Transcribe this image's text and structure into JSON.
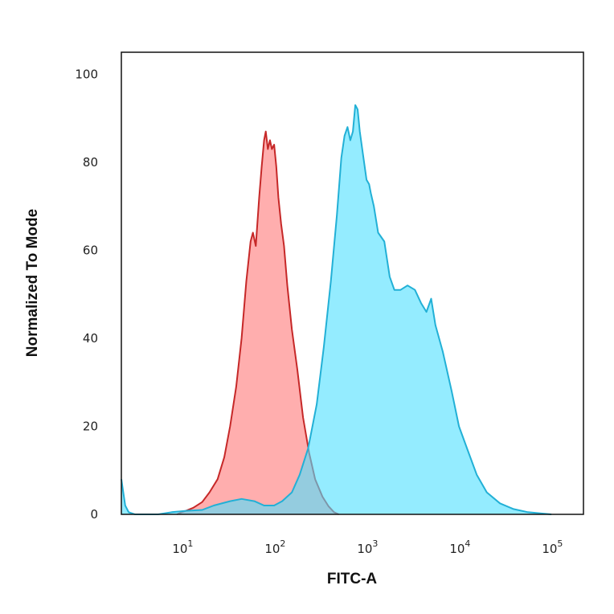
{
  "chart_data": {
    "type": "area",
    "title": "",
    "xlabel": "FITC-A",
    "ylabel": "Normalized To Mode",
    "x_scale": "log",
    "xlim": [
      2,
      200000
    ],
    "ylim": [
      0,
      105
    ],
    "x_ticks": [
      {
        "value": 10,
        "base": "10",
        "exp": "1"
      },
      {
        "value": 100,
        "base": "10",
        "exp": "2"
      },
      {
        "value": 1000,
        "base": "10",
        "exp": "3"
      },
      {
        "value": 10000,
        "base": "10",
        "exp": "4"
      },
      {
        "value": 100000,
        "base": "10",
        "exp": "5"
      }
    ],
    "y_ticks": [
      {
        "value": 0,
        "label": "0"
      },
      {
        "value": 20,
        "label": "20"
      },
      {
        "value": 40,
        "label": "40"
      },
      {
        "value": 60,
        "label": "60"
      },
      {
        "value": 80,
        "label": "80"
      },
      {
        "value": 100,
        "label": "100"
      }
    ],
    "grid": false,
    "legend": "none",
    "series": [
      {
        "fill": "#ff6b6b",
        "stroke": "#c62828",
        "fill_opacity": 0.55,
        "points": [
          [
            8,
            0
          ],
          [
            9,
            0.5
          ],
          [
            10,
            0.8
          ],
          [
            12,
            1.5
          ],
          [
            15,
            2.8
          ],
          [
            18,
            5
          ],
          [
            22,
            8
          ],
          [
            26,
            13
          ],
          [
            30,
            20
          ],
          [
            35,
            29
          ],
          [
            40,
            40
          ],
          [
            45,
            53
          ],
          [
            50,
            62
          ],
          [
            53,
            64
          ],
          [
            57,
            61
          ],
          [
            62,
            72
          ],
          [
            66,
            79
          ],
          [
            70,
            85
          ],
          [
            73,
            87
          ],
          [
            77,
            83
          ],
          [
            81,
            85
          ],
          [
            85,
            83
          ],
          [
            90,
            84
          ],
          [
            95,
            79
          ],
          [
            100,
            72
          ],
          [
            107,
            66
          ],
          [
            115,
            61
          ],
          [
            125,
            52
          ],
          [
            140,
            42
          ],
          [
            160,
            33
          ],
          [
            185,
            22
          ],
          [
            215,
            14
          ],
          [
            250,
            8
          ],
          [
            300,
            4
          ],
          [
            350,
            1.8
          ],
          [
            400,
            0.5
          ],
          [
            450,
            0
          ]
        ]
      },
      {
        "fill": "#4de0ff",
        "stroke": "#22b0d6",
        "fill_opacity": 0.6,
        "points": [
          [
            2,
            8
          ],
          [
            2.1,
            5
          ],
          [
            2.2,
            2
          ],
          [
            2.4,
            0.5
          ],
          [
            2.8,
            0
          ],
          [
            5,
            0
          ],
          [
            7,
            0.5
          ],
          [
            10,
            0.8
          ],
          [
            15,
            1
          ],
          [
            20,
            2
          ],
          [
            30,
            3
          ],
          [
            40,
            3.5
          ],
          [
            55,
            3
          ],
          [
            70,
            2
          ],
          [
            90,
            2
          ],
          [
            110,
            3
          ],
          [
            140,
            5
          ],
          [
            170,
            9
          ],
          [
            210,
            15
          ],
          [
            260,
            25
          ],
          [
            310,
            38
          ],
          [
            370,
            53
          ],
          [
            430,
            68
          ],
          [
            480,
            81
          ],
          [
            520,
            86
          ],
          [
            560,
            88
          ],
          [
            600,
            85
          ],
          [
            640,
            87
          ],
          [
            680,
            93
          ],
          [
            720,
            92
          ],
          [
            760,
            87
          ],
          [
            820,
            82
          ],
          [
            900,
            76
          ],
          [
            960,
            75
          ],
          [
            1000,
            73
          ],
          [
            1080,
            70
          ],
          [
            1200,
            64
          ],
          [
            1400,
            62
          ],
          [
            1600,
            54
          ],
          [
            1800,
            51
          ],
          [
            2100,
            51
          ],
          [
            2500,
            52
          ],
          [
            3000,
            51
          ],
          [
            3500,
            48
          ],
          [
            4000,
            46
          ],
          [
            4500,
            49
          ],
          [
            5000,
            43
          ],
          [
            6000,
            37
          ],
          [
            7500,
            28
          ],
          [
            9000,
            20
          ],
          [
            11000,
            15
          ],
          [
            14000,
            9
          ],
          [
            18000,
            5
          ],
          [
            25000,
            2.5
          ],
          [
            35000,
            1.2
          ],
          [
            50000,
            0.5
          ],
          [
            70000,
            0.2
          ],
          [
            90000,
            0
          ]
        ]
      }
    ]
  }
}
